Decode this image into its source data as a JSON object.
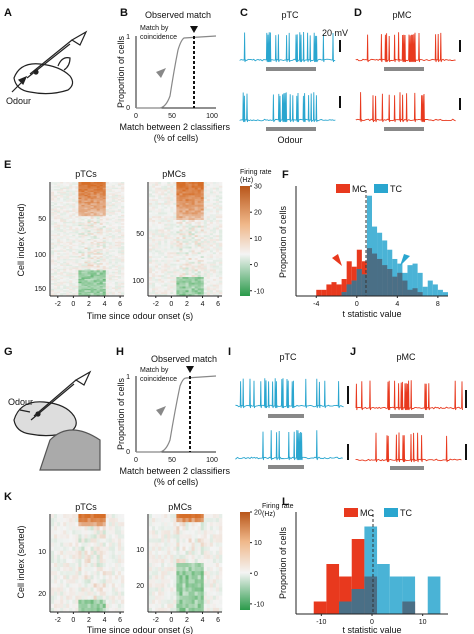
{
  "figure": {
    "panels": {
      "A": "A",
      "B": "B",
      "C": "C",
      "D": "D",
      "E": "E",
      "F": "F",
      "G": "G",
      "H": "H",
      "I": "I",
      "J": "J",
      "K": "K",
      "L": "L"
    },
    "odour_label_A": "Odour",
    "odour_label_G": "Odour",
    "odour_bar_label_C": "Odour",
    "scale_bar_label": "20 mV",
    "colors": {
      "tc": "#2aa6cf",
      "mc": "#e8391e",
      "overlap": "#4a6f86",
      "heat_hot": "#e07b24",
      "heat_cold": "#2da44e"
    }
  },
  "panelB": {
    "title": "Observed match",
    "annotation": "Match by\ncoincidence",
    "xlabel": "Match between 2 classifiers\n(% of cells)",
    "ylabel": "Proportion of cells",
    "xticks": [
      "0",
      "50",
      "100"
    ],
    "yticks": [
      "0",
      "1"
    ]
  },
  "panelH": {
    "title": "Observed match",
    "annotation": "Match by\ncoincidence",
    "xlabel": "Match between 2 classifiers\n(% of cells)",
    "ylabel": "Proportion of cells",
    "xticks": [
      "0",
      "50",
      "100"
    ],
    "yticks": [
      "0",
      "1"
    ]
  },
  "panelC": {
    "title": "pTC"
  },
  "panelD": {
    "title": "pMC"
  },
  "panelI": {
    "title": "pTC"
  },
  "panelJ": {
    "title": "pMC"
  },
  "panelE": {
    "left_title": "pTCs",
    "right_title": "pMCs",
    "ylabel": "Cell index (sorted)",
    "xlabel": "Time since odour onset (s)",
    "left_yticks": [
      "50",
      "100",
      "150"
    ],
    "right_yticks": [
      "50",
      "100"
    ],
    "xticks": [
      "-2",
      "0",
      "2",
      "4",
      "6"
    ],
    "colorbar_label": "Firing rate\n(Hz)",
    "colorbar_ticks": [
      "30",
      "20",
      "10",
      "0",
      "-10"
    ]
  },
  "panelK": {
    "left_title": "pTCs",
    "right_title": "pMCs",
    "ylabel": "Cell index (sorted)",
    "xlabel": "Time since odour onset (s)",
    "left_yticks": [
      "10",
      "20"
    ],
    "right_yticks": [
      "10",
      "20"
    ],
    "xticks": [
      "-2",
      "0",
      "2",
      "4",
      "6"
    ],
    "colorbar_label": "Firing rate\n(Hz)",
    "colorbar_ticks": [
      "20",
      "10",
      "0",
      "-10"
    ]
  },
  "chart_data": [
    {
      "panel": "F",
      "type": "bar",
      "xlabel": "t statistic value",
      "ylabel": "Proportion of cells",
      "xticks": [
        "-4",
        "0",
        "4",
        "8"
      ],
      "legend": [
        "MC",
        "TC"
      ],
      "xlim": [
        -6,
        9
      ],
      "ylim": [
        0,
        0.14
      ],
      "bin_start": -5.5,
      "bin_width": 0.5,
      "series": [
        {
          "name": "MC",
          "values": [
            0.0,
            0.0,
            0.0,
            0.008,
            0.008,
            0.015,
            0.018,
            0.015,
            0.022,
            0.045,
            0.038,
            0.06,
            0.045,
            0.062,
            0.055,
            0.048,
            0.04,
            0.035,
            0.025,
            0.03,
            0.02,
            0.008,
            0.01,
            0.005,
            0.0,
            0.0,
            0.0,
            0.0,
            0.0,
            0.0
          ]
        },
        {
          "name": "TC",
          "values": [
            0.0,
            0.0,
            0.0,
            0.0,
            0.0,
            0.0,
            0.0,
            0.0,
            0.005,
            0.015,
            0.02,
            0.035,
            0.028,
            0.13,
            0.09,
            0.082,
            0.072,
            0.06,
            0.048,
            0.042,
            0.03,
            0.04,
            0.042,
            0.03,
            0.012,
            0.02,
            0.015,
            0.008,
            0.005,
            0.0
          ]
        }
      ]
    },
    {
      "panel": "L",
      "type": "bar",
      "xlabel": "t statistic value",
      "ylabel": "Proportion of cells",
      "xticks": [
        "-10",
        "0",
        "10"
      ],
      "legend": [
        "MC",
        "TC"
      ],
      "xlim": [
        -15,
        15
      ],
      "ylim": [
        0,
        0.32
      ],
      "bin_start": -14,
      "bin_width": 2.5,
      "series": [
        {
          "name": "MC",
          "values": [
            0.0,
            0.04,
            0.16,
            0.12,
            0.24,
            0.12,
            0.0,
            0.0,
            0.04,
            0.0,
            0.0,
            0.0
          ]
        },
        {
          "name": "TC",
          "values": [
            0.0,
            0.0,
            0.0,
            0.04,
            0.08,
            0.28,
            0.16,
            0.12,
            0.12,
            0.0,
            0.12,
            0.0
          ]
        }
      ]
    }
  ]
}
